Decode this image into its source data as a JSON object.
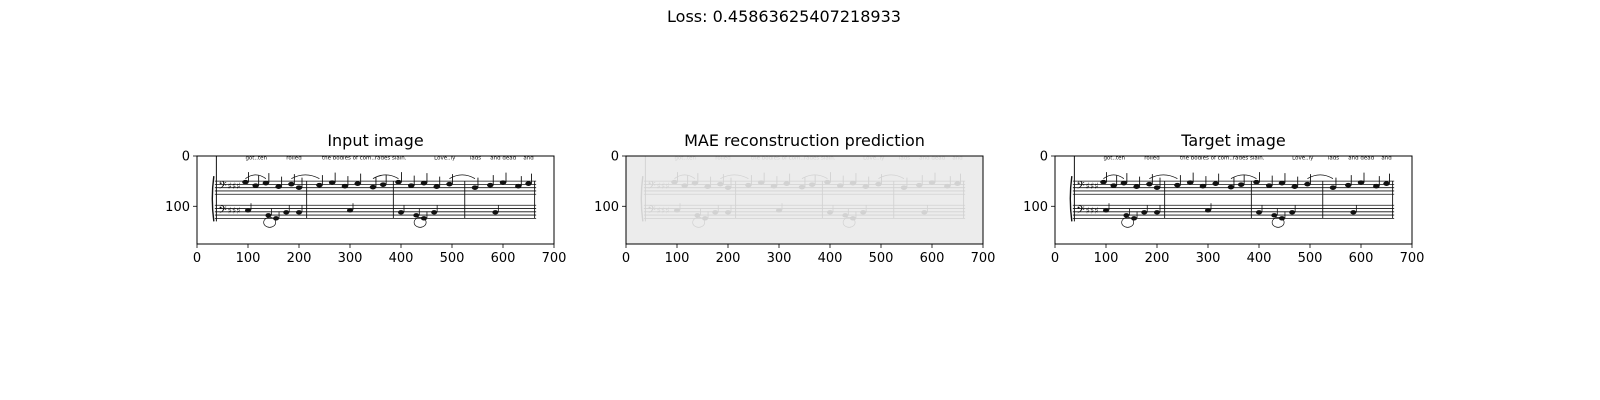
{
  "figure": {
    "suptitle": "Loss: 0.45863625407218933"
  },
  "colors": {
    "background": "#ffffff",
    "axes_frame": "#000000",
    "staff_ink": "#111111",
    "reconstruction_background": "#ececec",
    "reconstruction_ink": "#bdbdbd"
  },
  "chart_data": [
    {
      "type": "image",
      "title": "Input image",
      "content": "sheet music excerpt (grayscale)",
      "xlim": [
        0,
        700
      ],
      "ylim": [
        175,
        0
      ],
      "xticks": [
        0,
        100,
        200,
        300,
        400,
        500,
        600,
        700
      ],
      "yticks": [
        0,
        100
      ],
      "grid": false
    },
    {
      "type": "image",
      "title": "MAE reconstruction prediction",
      "content": "faded reconstruction of sheet music (grayscale)",
      "xlim": [
        0,
        700
      ],
      "ylim": [
        175,
        0
      ],
      "xticks": [
        0,
        100,
        200,
        300,
        400,
        500,
        600,
        700
      ],
      "yticks": [
        0,
        100
      ],
      "grid": false
    },
    {
      "type": "image",
      "title": "Target image",
      "content": "sheet music excerpt (grayscale)",
      "xlim": [
        0,
        700
      ],
      "ylim": [
        175,
        0
      ],
      "xticks": [
        0,
        100,
        200,
        300,
        400,
        500,
        600,
        700
      ],
      "yticks": [
        0,
        100
      ],
      "grid": false
    }
  ],
  "lyrics": [
    "got..ten",
    "rolled",
    "the bodies of com..rades slain.",
    "Love..ly",
    "lads",
    "and dead",
    "and"
  ]
}
